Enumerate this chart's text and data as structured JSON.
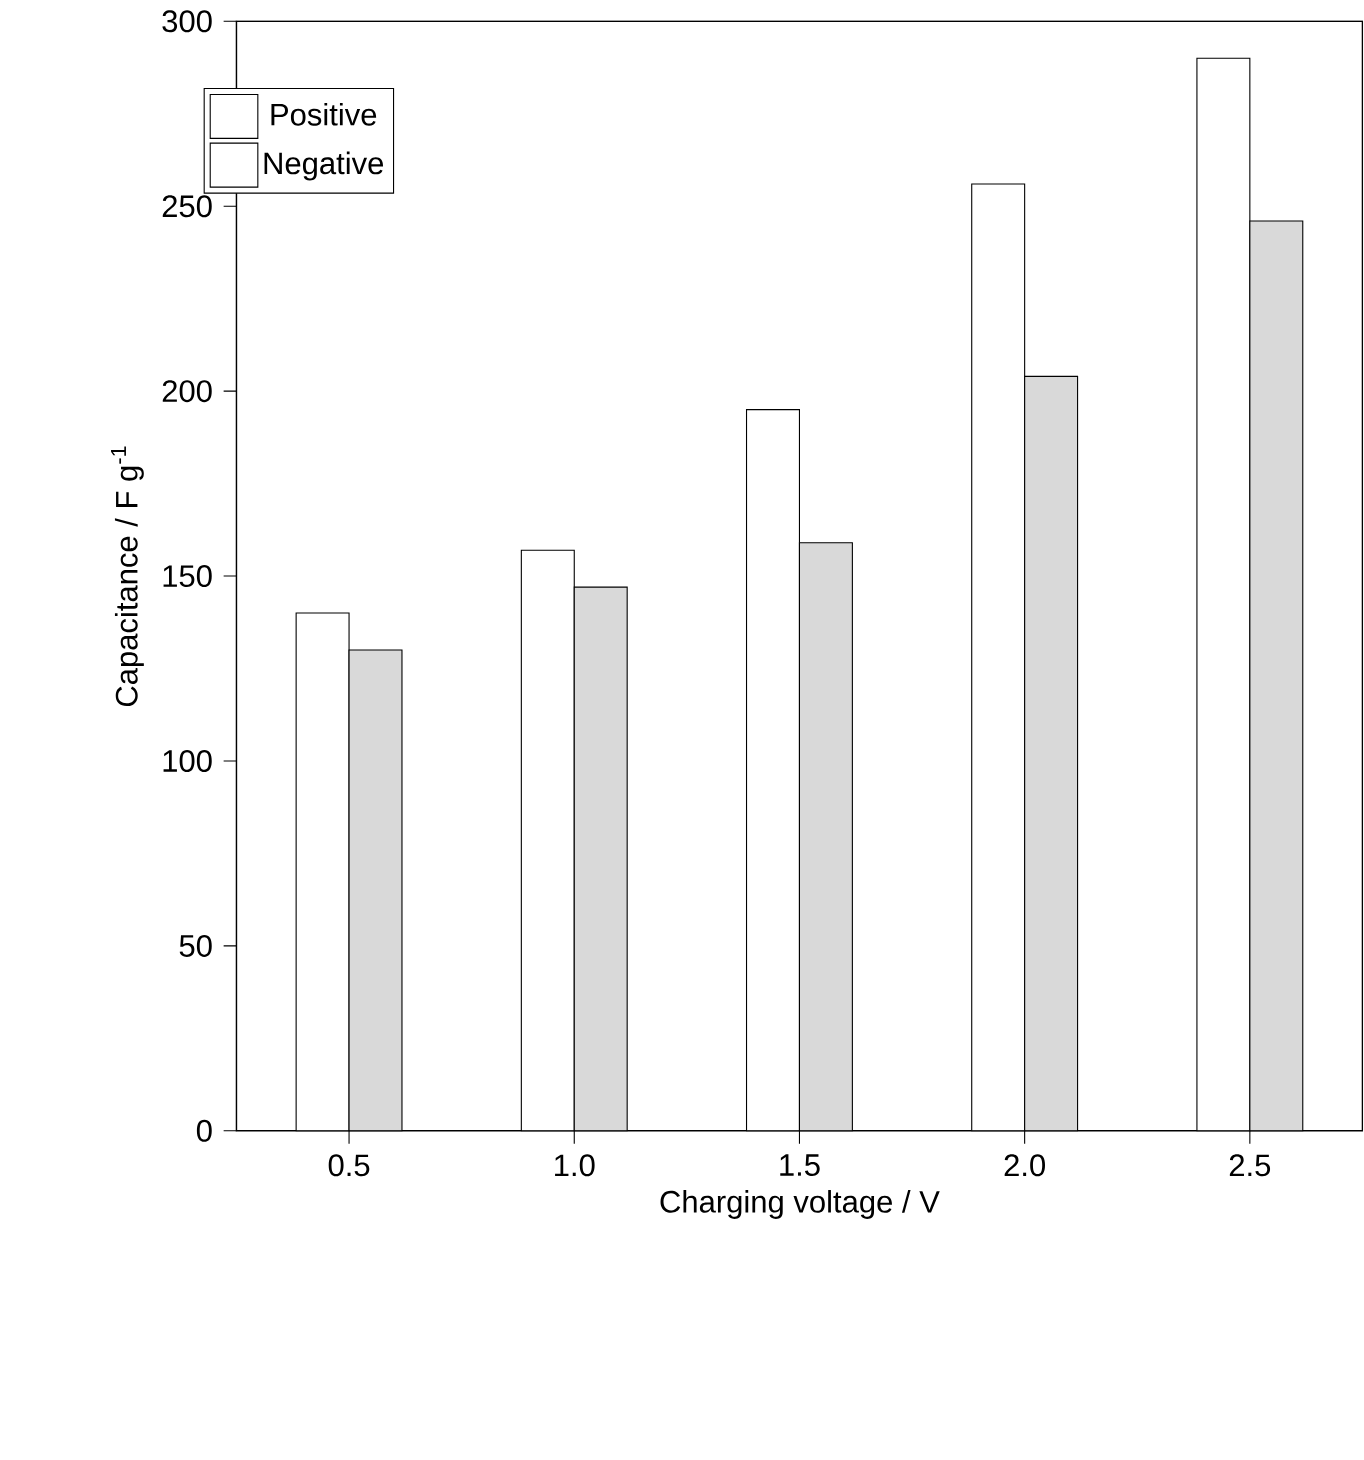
{
  "chart_data": {
    "type": "bar",
    "xlabel": "Charging voltage / V",
    "ylabel": "Capacitance / F g$^{-1}$",
    "categories": [
      "0.5",
      "1.0",
      "1.5",
      "2.0",
      "2.5"
    ],
    "series": [
      {
        "name": "Positive",
        "color": "#ffffff",
        "values": [
          140,
          157,
          195,
          256,
          290
        ]
      },
      {
        "name": "Negative",
        "color": "#d9d9d9",
        "values": [
          130,
          147,
          159,
          204,
          246
        ]
      }
    ],
    "ylim": [
      0,
      300
    ],
    "yticks": [
      0,
      50,
      100,
      150,
      200,
      250,
      300
    ],
    "grid": false,
    "legend": "top left"
  }
}
